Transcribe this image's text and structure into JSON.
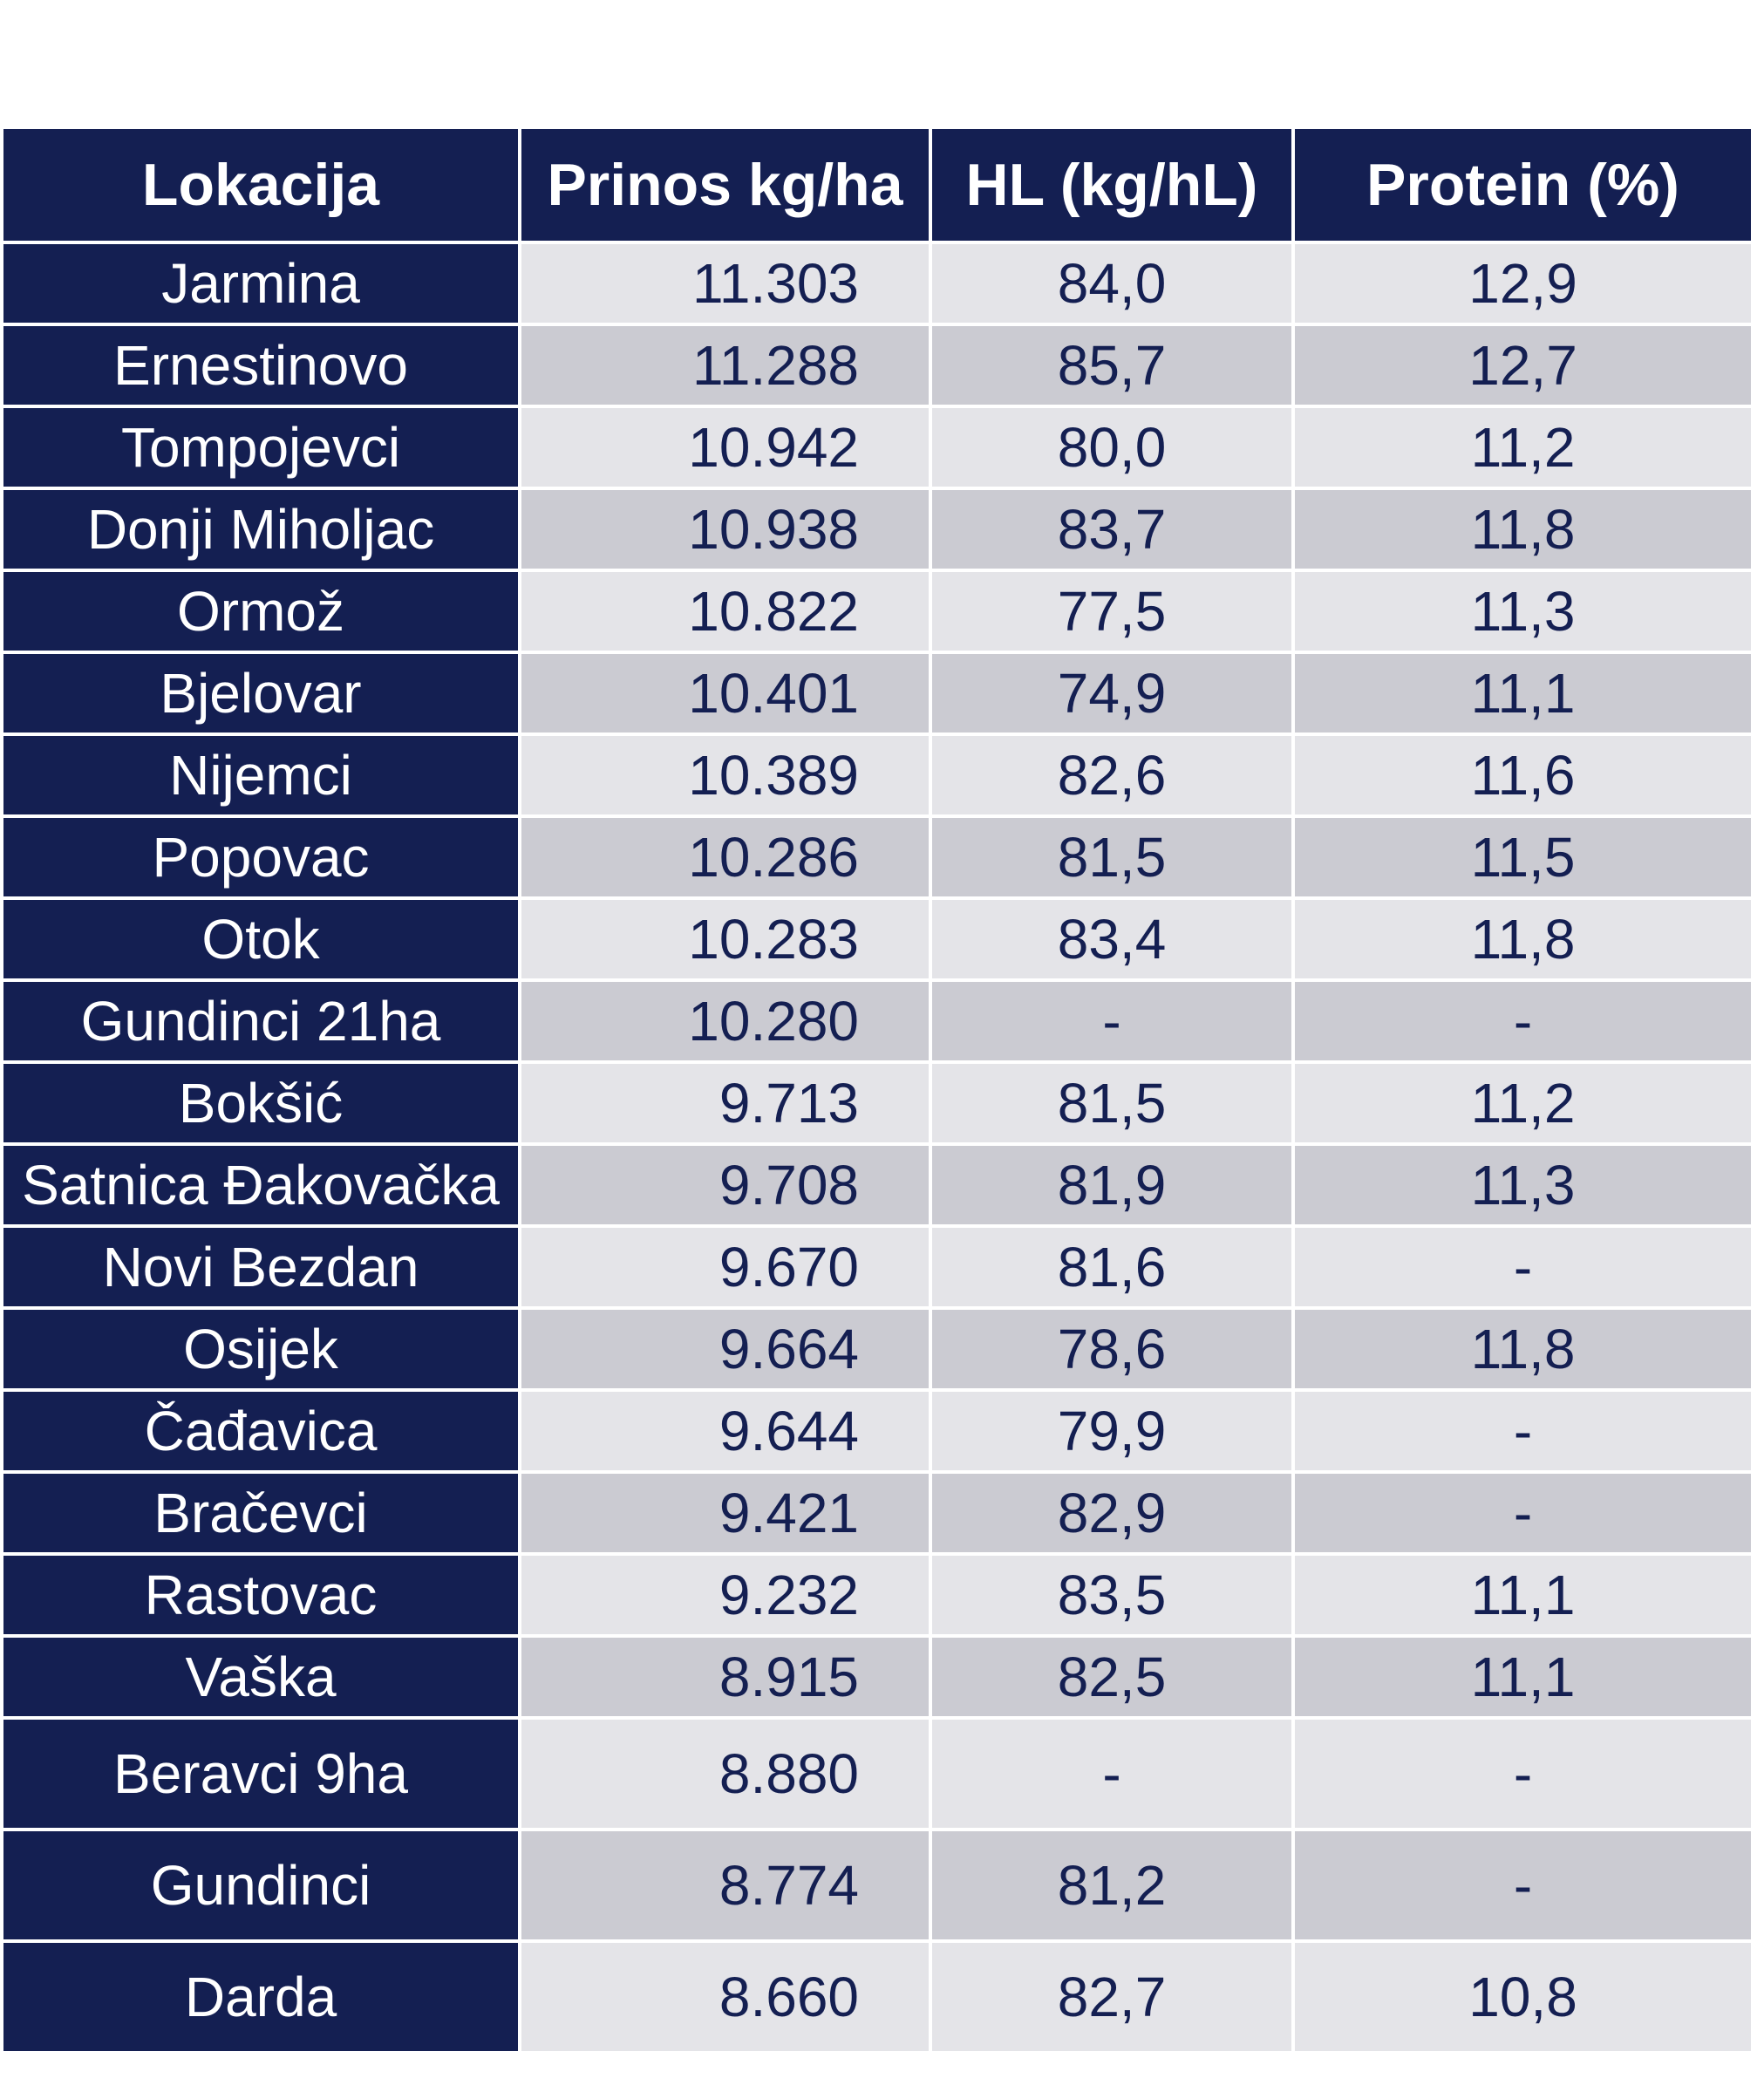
{
  "table": {
    "headers": [
      "Lokacija",
      "Prinos kg/ha",
      "HL (kg/hL)",
      "Protein (%)"
    ],
    "rows": [
      {
        "lokacija": "Jarmina",
        "prinos": "11.303",
        "hl": "84,0",
        "protein": "12,9"
      },
      {
        "lokacija": "Ernestinovo",
        "prinos": "11.288",
        "hl": "85,7",
        "protein": "12,7"
      },
      {
        "lokacija": "Tompojevci",
        "prinos": "10.942",
        "hl": "80,0",
        "protein": "11,2"
      },
      {
        "lokacija": "Donji Miholjac",
        "prinos": "10.938",
        "hl": "83,7",
        "protein": "11,8"
      },
      {
        "lokacija": "Ormož",
        "prinos": "10.822",
        "hl": "77,5",
        "protein": "11,3"
      },
      {
        "lokacija": "Bjelovar",
        "prinos": "10.401",
        "hl": "74,9",
        "protein": "11,1"
      },
      {
        "lokacija": "Nijemci",
        "prinos": "10.389",
        "hl": "82,6",
        "protein": "11,6"
      },
      {
        "lokacija": "Popovac",
        "prinos": "10.286",
        "hl": "81,5",
        "protein": "11,5"
      },
      {
        "lokacija": "Otok",
        "prinos": "10.283",
        "hl": "83,4",
        "protein": "11,8"
      },
      {
        "lokacija": "Gundinci 21ha",
        "prinos": "10.280",
        "hl": "-",
        "protein": "-"
      },
      {
        "lokacija": "Bokšić",
        "prinos": "9.713",
        "hl": "81,5",
        "protein": "11,2"
      },
      {
        "lokacija": "Satnica Đakovačka",
        "prinos": "9.708",
        "hl": "81,9",
        "protein": "11,3"
      },
      {
        "lokacija": "Novi Bezdan",
        "prinos": "9.670",
        "hl": "81,6",
        "protein": "-"
      },
      {
        "lokacija": "Osijek",
        "prinos": "9.664",
        "hl": "78,6",
        "protein": "11,8"
      },
      {
        "lokacija": "Čađavica",
        "prinos": "9.644",
        "hl": "79,9",
        "protein": "-"
      },
      {
        "lokacija": "Bračevci",
        "prinos": "9.421",
        "hl": "82,9",
        "protein": "-"
      },
      {
        "lokacija": "Rastovac",
        "prinos": "9.232",
        "hl": "83,5",
        "protein": "11,1"
      },
      {
        "lokacija": "Vaška",
        "prinos": "8.915",
        "hl": "82,5",
        "protein": "11,1"
      },
      {
        "lokacija": "Beravci 9ha",
        "prinos": "8.880",
        "hl": "-",
        "protein": "-"
      },
      {
        "lokacija": "Gundinci",
        "prinos": "8.774",
        "hl": "81,2",
        "protein": "-"
      },
      {
        "lokacija": "Darda",
        "prinos": "8.660",
        "hl": "82,7",
        "protein": "10,8"
      }
    ]
  },
  "colors": {
    "header_bg": "#141f52",
    "header_text": "#ffffff",
    "row_light": "#e4e4e8",
    "row_dark": "#cbcbd2",
    "value_text": "#141f52"
  }
}
